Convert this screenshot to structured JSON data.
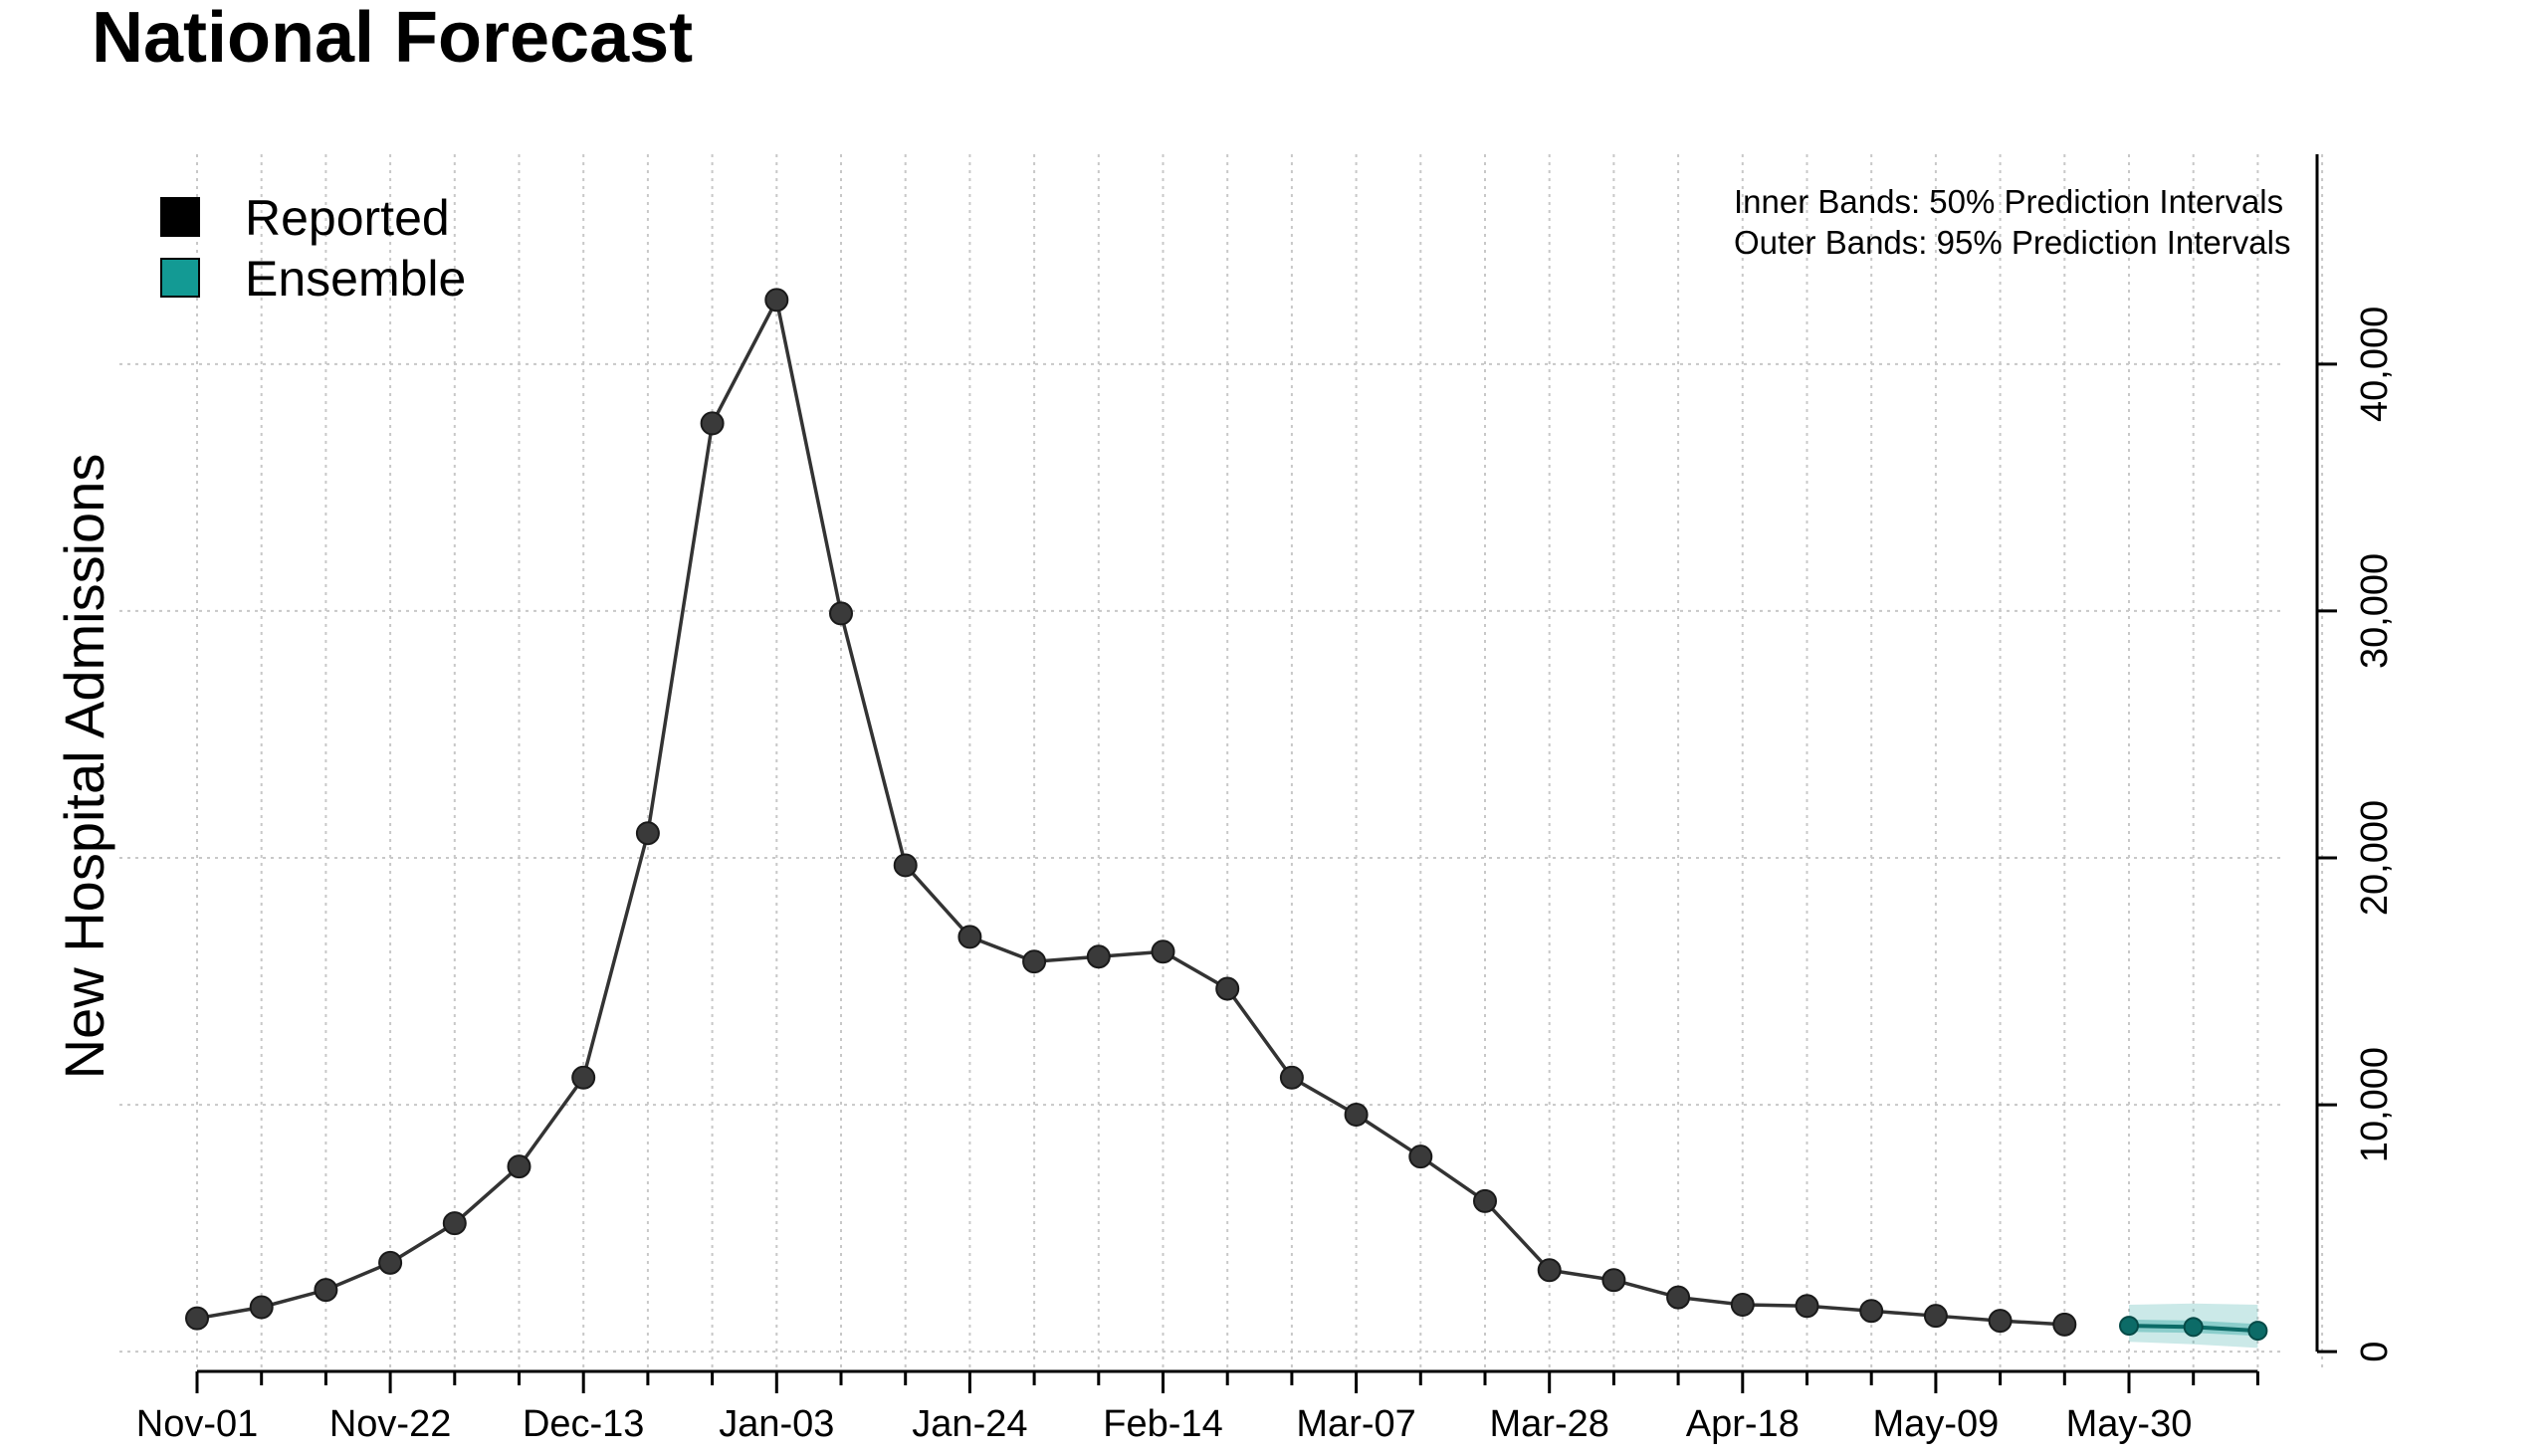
{
  "chart_data": {
    "type": "line",
    "title": "National Forecast",
    "xlabel": "",
    "ylabel": "New Hospital Admissions",
    "x_tick_labels": [
      "Nov-01",
      "Nov-22",
      "Dec-13",
      "Jan-03",
      "Jan-24",
      "Feb-14",
      "Mar-07",
      "Mar-28",
      "Apr-18",
      "May-09",
      "May-30"
    ],
    "y_ticks": [
      0,
      10000,
      20000,
      30000,
      40000
    ],
    "y_tick_labels": [
      "0",
      "10,000",
      "20,000",
      "30,000",
      "40,000"
    ],
    "ylim": [
      -800,
      48500
    ],
    "grid": true,
    "legend": {
      "placement": "top-left",
      "items": [
        {
          "label": "Reported",
          "color": "#000000"
        },
        {
          "label": "Ensemble",
          "color": "#139a94"
        }
      ]
    },
    "annotation": {
      "line1": "Inner Bands: 50% Prediction Intervals",
      "line2": "Outer Bands: 95% Prediction Intervals"
    },
    "series": [
      {
        "name": "Reported",
        "color": "#333333",
        "start_date": "Nov-01",
        "interval_days": 7,
        "values": [
          1350,
          1800,
          2500,
          3600,
          5200,
          7500,
          11100,
          21000,
          37600,
          42600,
          29900,
          19700,
          16800,
          15800,
          16000,
          16200,
          14700,
          11100,
          9600,
          7900,
          6100,
          3300,
          2900,
          2200,
          1900,
          1850,
          1650,
          1450,
          1250,
          1100
        ]
      },
      {
        "name": "Ensemble",
        "color": "#0c6b67",
        "start_date": "May-30",
        "interval_days": 7,
        "values": [
          1050,
          1000,
          850
        ],
        "band50_low": [
          800,
          760,
          640
        ],
        "band50_high": [
          1300,
          1260,
          1120
        ],
        "band95_low": [
          400,
          300,
          150
        ],
        "band95_high": [
          1900,
          1950,
          1900
        ]
      }
    ]
  }
}
